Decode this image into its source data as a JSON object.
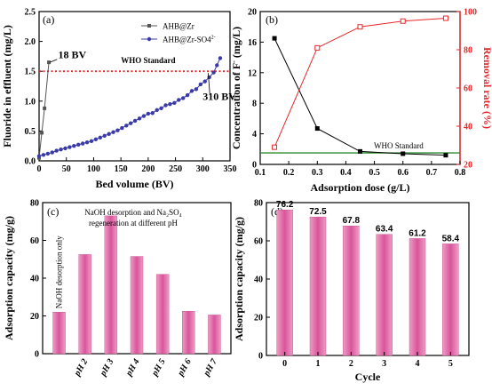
{
  "colors": {
    "black": "#000000",
    "blue_series": "#3b3ba8",
    "red": "#e8262a",
    "green": "#2a8a2a",
    "pink_bar": "#d9559a",
    "pink_bar_light": "#ee9cc6"
  },
  "chart_data": [
    {
      "id": "a",
      "type": "line",
      "panel_label": "(a)",
      "xlabel": "Bed volume (BV)",
      "ylabel": "Fluoride in effluent (mg/L)",
      "xlim": [
        0,
        350
      ],
      "ylim": [
        0,
        2.5
      ],
      "xticks": [
        "0",
        "50",
        "100",
        "150",
        "200",
        "250",
        "300",
        "350"
      ],
      "yticks": [
        "0.0",
        "0.5",
        "1.0",
        "1.5",
        "2.0",
        "2.5"
      ],
      "legend_position": "top-right",
      "series": [
        {
          "name": "AHB@Zr",
          "marker": "square",
          "color": "#555555",
          "x": [
            0,
            5,
            10,
            18
          ],
          "y": [
            0.05,
            0.47,
            0.88,
            1.65
          ]
        },
        {
          "name": "AHB@Zr-SO4",
          "name_suffix": "2-",
          "marker": "circle",
          "color": "#3b3ba8",
          "x": [
            0,
            8,
            16,
            24,
            32,
            40,
            48,
            56,
            64,
            72,
            80,
            88,
            96,
            104,
            112,
            120,
            128,
            136,
            144,
            152,
            160,
            168,
            176,
            184,
            192,
            200,
            208,
            216,
            224,
            232,
            240,
            248,
            256,
            264,
            272,
            280,
            288,
            296,
            304,
            312,
            320,
            326,
            332
          ],
          "y": [
            0.08,
            0.1,
            0.12,
            0.14,
            0.17,
            0.19,
            0.21,
            0.23,
            0.25,
            0.27,
            0.29,
            0.31,
            0.33,
            0.36,
            0.39,
            0.42,
            0.45,
            0.48,
            0.51,
            0.55,
            0.59,
            0.63,
            0.67,
            0.71,
            0.75,
            0.79,
            0.8,
            0.85,
            0.88,
            0.93,
            0.95,
            0.97,
            1.02,
            1.05,
            1.1,
            1.17,
            1.2,
            1.28,
            1.33,
            1.4,
            1.48,
            1.6,
            1.72
          ]
        }
      ],
      "reference_line": {
        "label": "WHO Standard",
        "y": 1.5,
        "style": "dotted",
        "color": "#e8262a"
      },
      "annotations": [
        "18 BV",
        "310 BV"
      ]
    },
    {
      "id": "b",
      "type": "line",
      "panel_label": "(b)",
      "xlabel": "Adsorption dose (g/L)",
      "ylabel": "Concentration of F",
      "ylabel_superscript": "-",
      "ylabel_suffix": " (mg/L)",
      "y2label": "Removal rate (%)",
      "xlim": [
        0.1,
        0.8
      ],
      "ylim": [
        0,
        20
      ],
      "y2lim": [
        20,
        100
      ],
      "xticks": [
        "0.1",
        "0.2",
        "0.3",
        "0.4",
        "0.5",
        "0.6",
        "0.7",
        "0.8"
      ],
      "yticks": [
        "0",
        "4",
        "8",
        "12",
        "16",
        "20"
      ],
      "y2ticks": [
        "20",
        "40",
        "60",
        "80",
        "100"
      ],
      "series": [
        {
          "axis": "left",
          "marker": "square",
          "color": "#000000",
          "x": [
            0.15,
            0.3,
            0.45,
            0.6,
            0.75
          ],
          "y": [
            16.5,
            4.7,
            1.7,
            1.4,
            1.2
          ]
        },
        {
          "axis": "right",
          "marker": "square-open",
          "color": "#e8262a",
          "x": [
            0.15,
            0.3,
            0.45,
            0.6,
            0.75
          ],
          "y": [
            29,
            81,
            92,
            95,
            96.5
          ]
        }
      ],
      "reference_line": {
        "label": "WHO Standard",
        "y": 1.5,
        "style": "solid",
        "color": "#2a8a2a"
      }
    },
    {
      "id": "c",
      "type": "bar",
      "panel_label": "(c)",
      "ylabel": "Adsorption capacity (mg/g)",
      "ylim": [
        0,
        80
      ],
      "yticks": [
        "0",
        "20",
        "40",
        "60",
        "80"
      ],
      "title_lines": [
        "NaOH desorption and Na₂SO₄",
        "regeneration at different pH"
      ],
      "categories": [
        "",
        "pH 2",
        "pH 3",
        "pH 4",
        "pH 5",
        "pH 6",
        "pH 7"
      ],
      "values": [
        22,
        52.5,
        73,
        51.5,
        42,
        22.5,
        20.5
      ],
      "bar_note": "NaOH desorption only"
    },
    {
      "id": "d",
      "type": "bar",
      "panel_label": "(d)",
      "xlabel": "Cycle",
      "ylabel": "Adsorption capacity (mg/g)",
      "ylim": [
        0,
        80
      ],
      "yticks": [
        "0",
        "20",
        "40",
        "60",
        "80"
      ],
      "categories": [
        "0",
        "1",
        "2",
        "3",
        "4",
        "5"
      ],
      "values": [
        76.2,
        72.5,
        67.8,
        63.4,
        61.2,
        58.4
      ],
      "value_labels": [
        "76.2",
        "72.5",
        "67.8",
        "63.4",
        "61.2",
        "58.4"
      ]
    }
  ]
}
